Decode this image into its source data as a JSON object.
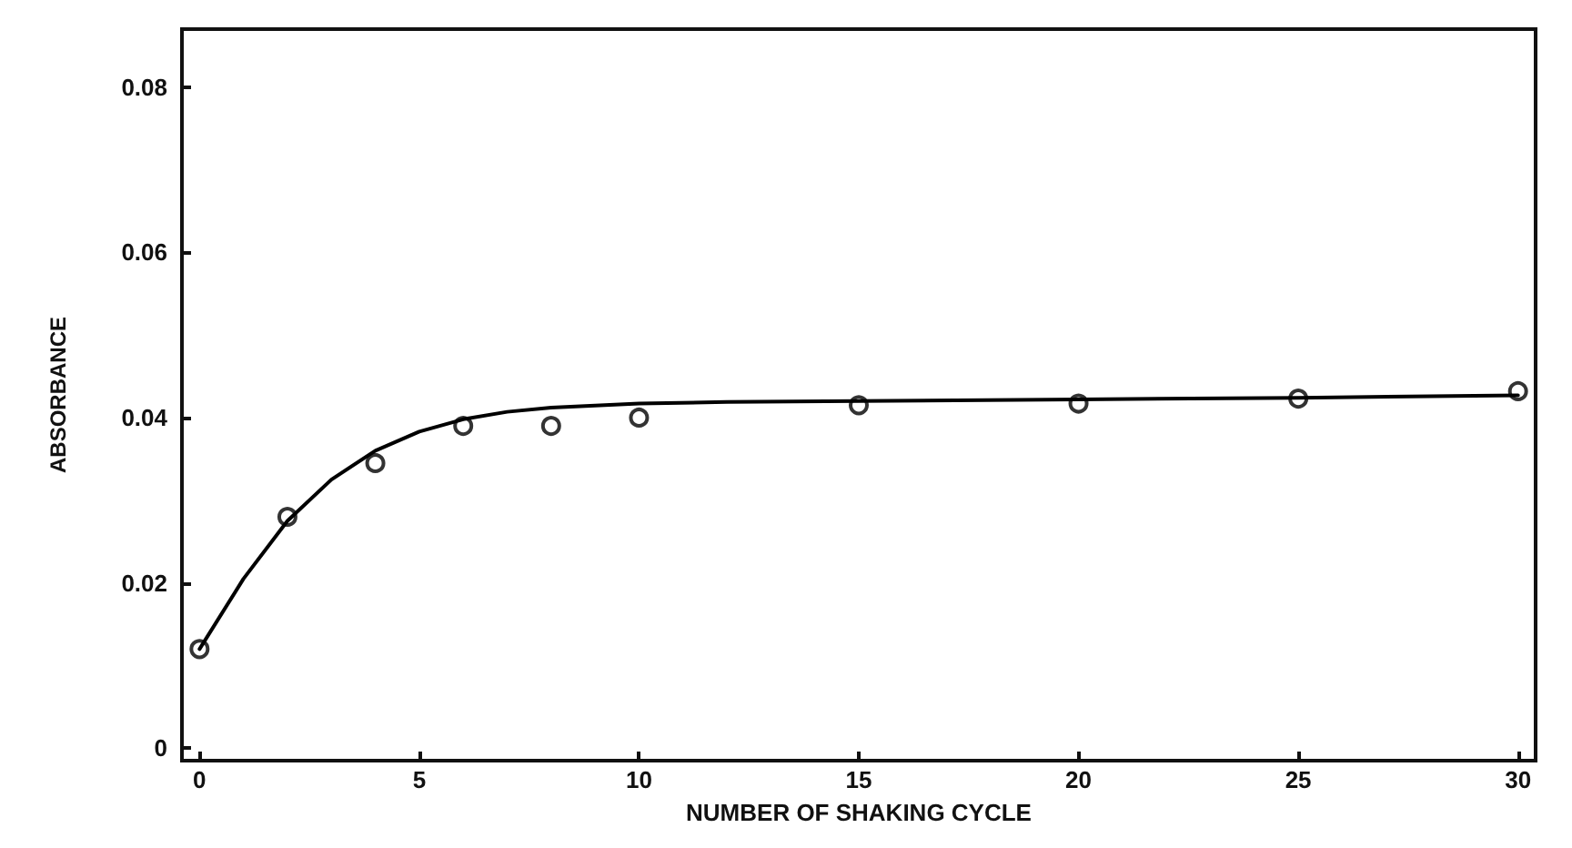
{
  "chart_data": {
    "type": "scatter",
    "xlabel": "NUMBER OF SHAKING CYCLE",
    "ylabel": "ABSORBANCE",
    "x": [
      0,
      2,
      4,
      6,
      8,
      10,
      15,
      20,
      25,
      30
    ],
    "series": [
      {
        "color": "#000000",
        "marker": "circle",
        "values": [
          0.012,
          0.028,
          0.0345,
          0.039,
          0.039,
          0.04,
          0.0415,
          0.0417,
          0.0423,
          0.0432
        ]
      },
      {
        "type": "line",
        "color": "#000000",
        "marker": "none",
        "line_style": "solid",
        "x": [
          0,
          1,
          2,
          3,
          4,
          5,
          6,
          7,
          8,
          10,
          12,
          15,
          20,
          25,
          30
        ],
        "values": [
          0.012,
          0.0205,
          0.0275,
          0.0325,
          0.036,
          0.0383,
          0.0398,
          0.0407,
          0.0412,
          0.0417,
          0.0419,
          0.042,
          0.0422,
          0.0424,
          0.0427
        ]
      }
    ],
    "xlim": [
      -0.4,
      30.4
    ],
    "xticks": [
      0,
      5,
      10,
      15,
      20,
      25,
      30
    ],
    "ylim": [
      -0.0015,
      0.087
    ],
    "yticks": [
      0,
      0.02,
      0.04,
      0.06,
      0.08
    ],
    "grid": false
  }
}
